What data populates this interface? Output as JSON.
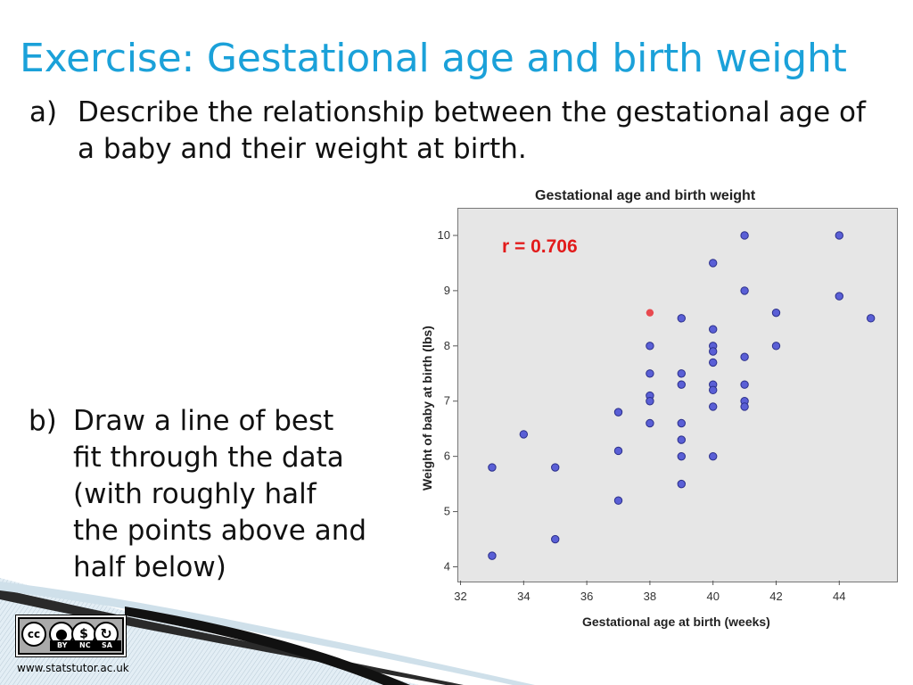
{
  "slide": {
    "title": "Exercise: Gestational age and birth weight",
    "question_a_label": "a)",
    "question_a_text": "Describe the relationship between the gestational age of a baby and their weight at birth.",
    "question_b_label": "b)",
    "question_b_text": "Draw a line of best fit through the data (with roughly half the points above and half below)",
    "footer_url": "www.statstutor.ac.uk",
    "license_labels": [
      "BY",
      "NC",
      "SA"
    ],
    "license_logo_text": "cc",
    "colors": {
      "title": "#1ba1d9",
      "point": "#5a5fd6",
      "highlight_point": "#e8494f",
      "r_annotation": "#e21b1b"
    }
  },
  "chart_data": {
    "type": "scatter",
    "title": "Gestational age and birth weight",
    "xlabel": "Gestational age at birth (weeks)",
    "ylabel": "Weight of baby at birth (lbs)",
    "xlim": [
      31.9,
      45.8
    ],
    "ylim": [
      3.75,
      10.5
    ],
    "xticks": [
      32,
      34,
      36,
      38,
      40,
      42,
      44
    ],
    "yticks": [
      4,
      5,
      6,
      7,
      8,
      9,
      10
    ],
    "annotation": "r = 0.706",
    "grid": false,
    "points": [
      {
        "x": 33,
        "y": 5.8
      },
      {
        "x": 33,
        "y": 4.2
      },
      {
        "x": 34,
        "y": 6.4
      },
      {
        "x": 35,
        "y": 5.8
      },
      {
        "x": 35,
        "y": 4.5
      },
      {
        "x": 37,
        "y": 6.8
      },
      {
        "x": 37,
        "y": 6.1
      },
      {
        "x": 37,
        "y": 5.2
      },
      {
        "x": 38,
        "y": 8.0
      },
      {
        "x": 38,
        "y": 7.5
      },
      {
        "x": 38,
        "y": 7.1
      },
      {
        "x": 38,
        "y": 7.0
      },
      {
        "x": 38,
        "y": 6.6
      },
      {
        "x": 39,
        "y": 8.5
      },
      {
        "x": 39,
        "y": 7.5
      },
      {
        "x": 39,
        "y": 7.3
      },
      {
        "x": 39,
        "y": 6.6
      },
      {
        "x": 39,
        "y": 6.3
      },
      {
        "x": 39,
        "y": 6.0
      },
      {
        "x": 39,
        "y": 5.5
      },
      {
        "x": 40,
        "y": 9.5
      },
      {
        "x": 40,
        "y": 8.3
      },
      {
        "x": 40,
        "y": 8.0
      },
      {
        "x": 40,
        "y": 7.9
      },
      {
        "x": 40,
        "y": 7.7
      },
      {
        "x": 40,
        "y": 7.3
      },
      {
        "x": 40,
        "y": 7.2
      },
      {
        "x": 40,
        "y": 6.9
      },
      {
        "x": 40,
        "y": 6.0
      },
      {
        "x": 41,
        "y": 10.0
      },
      {
        "x": 41,
        "y": 9.0
      },
      {
        "x": 41,
        "y": 7.8
      },
      {
        "x": 41,
        "y": 7.3
      },
      {
        "x": 41,
        "y": 7.0
      },
      {
        "x": 41,
        "y": 6.9
      },
      {
        "x": 42,
        "y": 8.6
      },
      {
        "x": 42,
        "y": 8.0
      },
      {
        "x": 44,
        "y": 10.0
      },
      {
        "x": 44,
        "y": 8.9
      },
      {
        "x": 45,
        "y": 8.5
      }
    ],
    "highlight_points": [
      {
        "x": 38,
        "y": 8.6
      }
    ]
  }
}
